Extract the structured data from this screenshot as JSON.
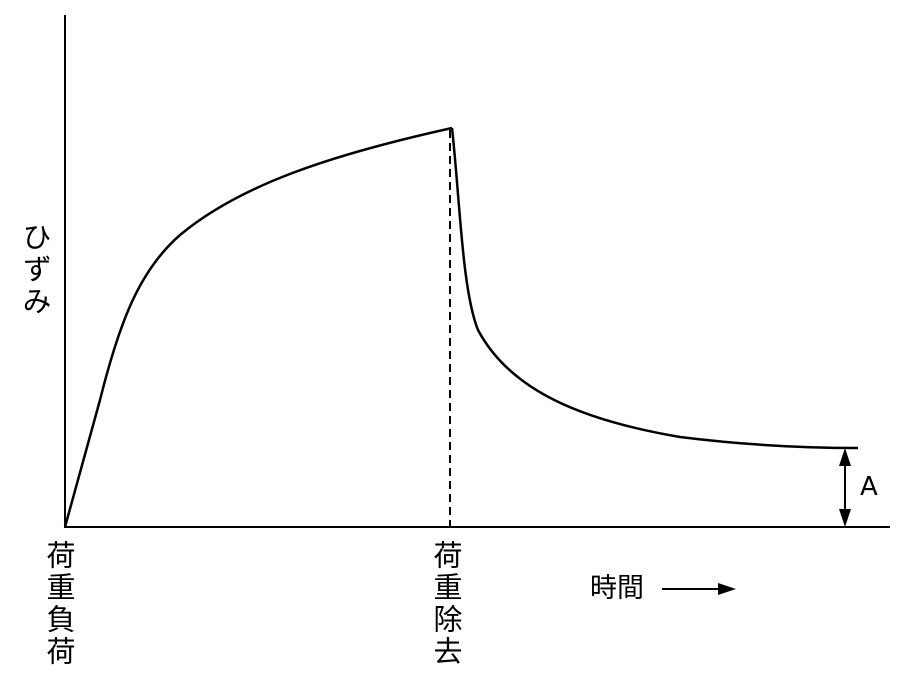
{
  "y_axis_label": "ひずみ",
  "x_axis_label": "時間",
  "events": [
    {
      "label": "荷重負荷"
    },
    {
      "label": "荷重除去"
    }
  ],
  "annotation": "A"
}
